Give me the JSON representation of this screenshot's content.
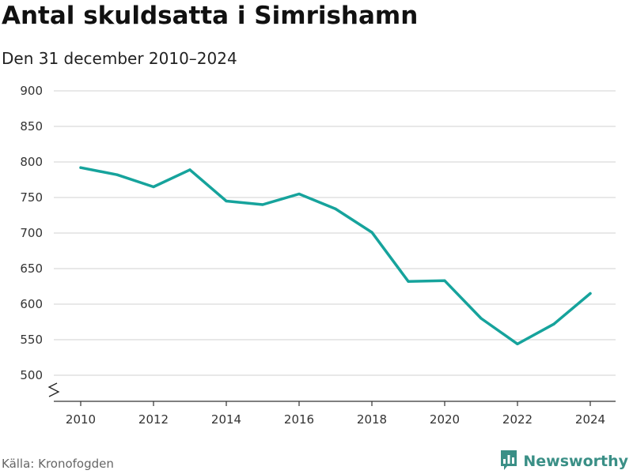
{
  "chart_data": {
    "type": "line",
    "title": "Antal skuldsatta i Simrishamn",
    "subtitle": "Den 31 december 2010–2024",
    "xlabel": "",
    "ylabel": "",
    "x_ticks": [
      "2010",
      "2012",
      "2014",
      "2016",
      "2018",
      "2020",
      "2022",
      "2024"
    ],
    "y_ticks": [
      "500",
      "550",
      "600",
      "650",
      "700",
      "750",
      "800",
      "850",
      "900"
    ],
    "ylim": [
      500,
      900
    ],
    "xlim": [
      2010,
      2024
    ],
    "y_axis_break": true,
    "grid": "horizontal",
    "series": [
      {
        "color": "#16a39c",
        "x": [
          2010,
          2011,
          2012,
          2013,
          2014,
          2015,
          2016,
          2017,
          2018,
          2019,
          2020,
          2021,
          2022,
          2023,
          2024
        ],
        "values": [
          792,
          782,
          765,
          789,
          745,
          740,
          755,
          734,
          701,
          632,
          633,
          580,
          544,
          572,
          615
        ]
      }
    ]
  },
  "source": "Källa: Kronofogden",
  "brand": {
    "name": "Newsworthy",
    "color": "#3a8f86",
    "icon": "bar-chart-icon"
  }
}
